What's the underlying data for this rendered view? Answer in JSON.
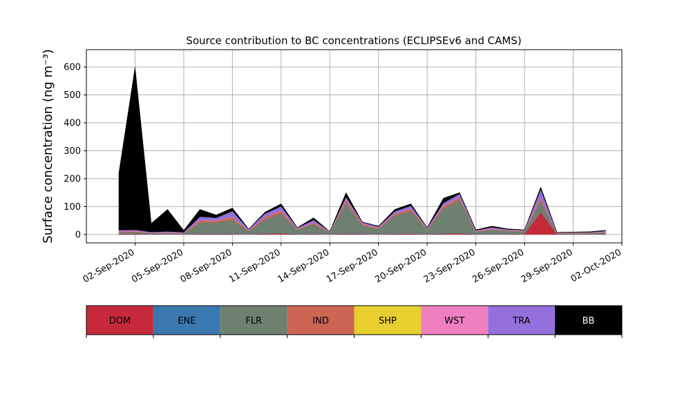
{
  "chart_data": {
    "type": "stacked_area",
    "title": "Source contribution to BC concentrations (ECLIPSEv6 and CAMS)",
    "y_label": "Surface concentration (ng m⁻³)",
    "x": [
      "2020-09-01",
      "2020-09-02",
      "2020-09-03",
      "2020-09-04",
      "2020-09-05",
      "2020-09-06",
      "2020-09-07",
      "2020-09-08",
      "2020-09-09",
      "2020-09-10",
      "2020-09-11",
      "2020-09-12",
      "2020-09-13",
      "2020-09-14",
      "2020-09-15",
      "2020-09-16",
      "2020-09-17",
      "2020-09-18",
      "2020-09-19",
      "2020-09-20",
      "2020-09-21",
      "2020-09-22",
      "2020-09-23",
      "2020-09-24",
      "2020-09-25",
      "2020-09-26",
      "2020-09-27",
      "2020-09-28",
      "2020-09-29",
      "2020-09-30",
      "2020-10-01"
    ],
    "series": [
      {
        "name": "DOM",
        "color": "#c62a3a",
        "values": [
          2,
          2,
          1,
          1,
          1,
          2,
          2,
          2,
          1,
          3,
          4,
          1,
          2,
          1,
          3,
          2,
          1,
          2,
          3,
          1,
          3,
          4,
          1,
          1,
          1,
          2,
          80,
          1,
          1,
          1,
          1
        ]
      },
      {
        "name": "ENE",
        "color": "#3a78b0",
        "values": [
          1,
          1,
          1,
          1,
          1,
          1,
          1,
          1,
          1,
          1,
          1,
          1,
          1,
          1,
          1,
          1,
          1,
          1,
          1,
          1,
          1,
          1,
          1,
          1,
          1,
          1,
          1,
          1,
          1,
          1,
          1
        ]
      },
      {
        "name": "FLR",
        "color": "#6e8070",
        "values": [
          5,
          6,
          3,
          3,
          2,
          40,
          40,
          50,
          10,
          50,
          70,
          15,
          35,
          6,
          110,
          30,
          18,
          65,
          80,
          15,
          90,
          120,
          8,
          15,
          10,
          8,
          40,
          2,
          3,
          3,
          6
        ]
      },
      {
        "name": "IND",
        "color": "#cc6554",
        "values": [
          3,
          3,
          1,
          2,
          1,
          8,
          6,
          10,
          2,
          8,
          10,
          2,
          5,
          1,
          10,
          5,
          3,
          6,
          8,
          3,
          8,
          8,
          2,
          3,
          2,
          2,
          10,
          1,
          1,
          1,
          2
        ]
      },
      {
        "name": "SHP",
        "color": "#e6cf2e",
        "values": [
          0,
          0,
          0,
          0,
          0,
          0,
          0,
          0,
          0,
          0,
          0,
          0,
          0,
          0,
          0,
          0,
          0,
          0,
          0,
          0,
          0,
          0,
          0,
          0,
          0,
          0,
          0,
          0,
          0,
          0,
          0
        ]
      },
      {
        "name": "WST",
        "color": "#f07fc0",
        "values": [
          1,
          1,
          1,
          1,
          1,
          1,
          1,
          1,
          1,
          1,
          1,
          1,
          1,
          1,
          1,
          1,
          1,
          1,
          1,
          1,
          1,
          1,
          1,
          1,
          1,
          1,
          1,
          1,
          1,
          1,
          1
        ]
      },
      {
        "name": "TRA",
        "color": "#9370db",
        "values": [
          4,
          4,
          2,
          3,
          2,
          12,
          10,
          20,
          4,
          12,
          15,
          4,
          8,
          1,
          10,
          5,
          4,
          8,
          10,
          3,
          10,
          12,
          2,
          5,
          3,
          2,
          30,
          1,
          1,
          1,
          2
        ]
      },
      {
        "name": "BB",
        "color": "#000000",
        "values": [
          204,
          583,
          31,
          79,
          7,
          26,
          10,
          11,
          1,
          5,
          9,
          1,
          8,
          0,
          15,
          1,
          2,
          7,
          7,
          1,
          17,
          4,
          2,
          4,
          2,
          1,
          8,
          1,
          1,
          2,
          2
        ]
      }
    ],
    "xlim": [
      "2020-08-30",
      "2020-10-02"
    ],
    "xticks": [
      {
        "value": "2020-09-02",
        "label": "02-Sep-2020"
      },
      {
        "value": "2020-09-05",
        "label": "05-Sep-2020"
      },
      {
        "value": "2020-09-08",
        "label": "08-Sep-2020"
      },
      {
        "value": "2020-09-11",
        "label": "11-Sep-2020"
      },
      {
        "value": "2020-09-14",
        "label": "14-Sep-2020"
      },
      {
        "value": "2020-09-17",
        "label": "17-Sep-2020"
      },
      {
        "value": "2020-09-20",
        "label": "20-Sep-2020"
      },
      {
        "value": "2020-09-23",
        "label": "23-Sep-2020"
      },
      {
        "value": "2020-09-26",
        "label": "26-Sep-2020"
      },
      {
        "value": "2020-09-29",
        "label": "29-Sep-2020"
      },
      {
        "value": "2020-10-02",
        "label": "02-Oct-2020"
      }
    ],
    "ylim": [
      -30,
      662
    ],
    "yticks": [
      0,
      100,
      200,
      300,
      400,
      500,
      600
    ],
    "grid": true
  }
}
